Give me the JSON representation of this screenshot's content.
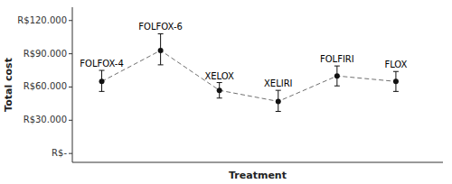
{
  "chart_data": {
    "type": "line",
    "x": [
      1,
      2,
      3,
      4,
      5,
      6
    ],
    "xlim": [
      0.5,
      6.8
    ],
    "annotations": [
      "FOLFOX-4",
      "FOLFOX-6",
      "XELOX",
      "XELIRI",
      "FOLFIRI",
      "FLOX"
    ],
    "series": [
      {
        "color": "#111111",
        "marker": "circle",
        "line_style": "dashed",
        "values": [
          65000,
          93000,
          57000,
          47000,
          70000,
          65000
        ],
        "error_low": [
          9000,
          13000,
          7000,
          9000,
          9000,
          9000
        ],
        "error_high": [
          10000,
          15000,
          7000,
          10000,
          9000,
          9000
        ]
      }
    ],
    "ylim": [
      -8000,
      132000
    ],
    "yticks": [
      {
        "value": 0,
        "label": "R$-"
      },
      {
        "value": 30000,
        "label": "R$30.000"
      },
      {
        "value": 60000,
        "label": "R$60.000"
      },
      {
        "value": 90000,
        "label": "R$90.000"
      },
      {
        "value": 120000,
        "label": "R$120.000"
      }
    ],
    "xlabel": "Treatment",
    "ylabel": "Total cost",
    "tick_labels": "y",
    "grid": false
  }
}
